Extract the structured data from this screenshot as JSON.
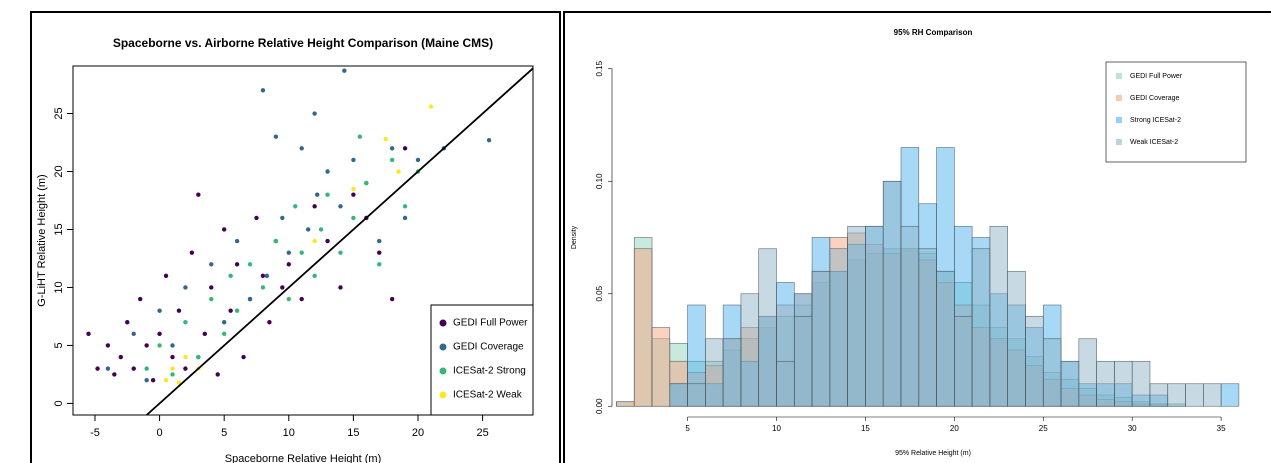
{
  "chart_data": [
    {
      "type": "scatter",
      "title": "Spaceborne vs. Airborne Relative Height Comparison (Maine CMS)",
      "x_label": "Spaceborne Relative Height (m)",
      "y_label": "G-LiHT Relative Height (m)",
      "xlim": [
        -6.7,
        28.9
      ],
      "ylim": [
        -1,
        29.1
      ],
      "xticks": [
        -5,
        0,
        5,
        10,
        15,
        20,
        25
      ],
      "yticks": [
        0,
        5,
        10,
        15,
        20,
        25
      ],
      "legend": "bottom-right",
      "series": [
        {
          "name": "GEDI Full Power",
          "color": "#440154",
          "x": [
            -5.5,
            -4.8,
            -4,
            -3.5,
            -3,
            -2.5,
            -2,
            -1.5,
            -1,
            -0.5,
            0,
            0.5,
            1,
            1.5,
            2,
            2.5,
            3,
            3.5,
            4,
            4.5,
            5,
            5.5,
            6,
            6.5,
            7,
            7.5,
            8,
            8.5,
            9,
            9.5,
            10,
            11,
            12,
            13,
            14,
            15,
            16,
            17,
            18,
            19
          ],
          "y": [
            6,
            3,
            5,
            2.5,
            4,
            7,
            3,
            9,
            5,
            2,
            6,
            11,
            4,
            8,
            3,
            13,
            18,
            6,
            10,
            2.5,
            15,
            8,
            12,
            4,
            9,
            16,
            11,
            7,
            14,
            10,
            12,
            9,
            17,
            14,
            10,
            18,
            16,
            13,
            9,
            22
          ]
        },
        {
          "name": "GEDI Coverage",
          "color": "#31688e",
          "x": [
            -4,
            -2,
            -1,
            0,
            1,
            2,
            3,
            4,
            5,
            6,
            7,
            8,
            8.3,
            9,
            9.5,
            10,
            11,
            11.5,
            12,
            12.2,
            13,
            14,
            14.3,
            15,
            16,
            17,
            18,
            19,
            20,
            22,
            25.5
          ],
          "y": [
            3,
            6,
            2,
            8,
            5,
            10,
            4,
            12,
            7,
            14,
            9,
            27,
            11,
            23,
            16,
            13,
            22,
            15,
            25,
            18,
            20,
            17,
            28.7,
            21,
            19,
            14,
            22,
            16,
            21,
            22,
            22.7
          ]
        },
        {
          "name": "ICESat-2 Strong",
          "color": "#35b779",
          "x": [
            -1,
            0,
            1,
            2,
            3,
            4,
            5,
            5.5,
            6,
            7,
            8,
            9,
            10,
            10.5,
            11,
            12,
            12.5,
            13,
            14,
            15,
            15.5,
            16,
            17,
            18,
            19,
            20
          ],
          "y": [
            3,
            5,
            2.5,
            7,
            4,
            9,
            6,
            11,
            8,
            12,
            10,
            14,
            9,
            17,
            13,
            11,
            15,
            18,
            13,
            16,
            23,
            19,
            12,
            21,
            17,
            20
          ]
        },
        {
          "name": "ICESat-2 Weak",
          "color": "#fde725",
          "x": [
            0.5,
            1,
            1.5,
            2,
            3,
            12,
            15,
            17.5,
            18.5,
            21
          ],
          "y": [
            2,
            3,
            1.8,
            4,
            3,
            14,
            18.5,
            22.8,
            20,
            25.6
          ]
        }
      ]
    },
    {
      "type": "histogram",
      "title": "95% RH Comparison",
      "x_label": "95% Relative Height (m)",
      "y_label": "Density",
      "xlim": [
        1.2,
        36.4
      ],
      "ylim": [
        -0.003,
        0.153
      ],
      "xticks": [
        5,
        10,
        15,
        20,
        25,
        30,
        35
      ],
      "yticks": [
        {
          "value": 0,
          "label": "0.00"
        },
        0.05,
        {
          "value": 0.1,
          "label": "0.10"
        },
        0.15
      ],
      "legend": "top-right",
      "bins": [
        1,
        2,
        3,
        4,
        5,
        6,
        7,
        8,
        9,
        10,
        11,
        12,
        13,
        14,
        15,
        16,
        17,
        18,
        19,
        20,
        21,
        22,
        23,
        24,
        25,
        26,
        27,
        28,
        29,
        30,
        31,
        32,
        33,
        34,
        35,
        36
      ],
      "series": [
        {
          "name": "GEDI Full Power",
          "color": "#8fd3be",
          "values": [
            0.002,
            0.075,
            0.03,
            0.028,
            0.02,
            0.02,
            0.025,
            0.03,
            0.035,
            0.04,
            0.045,
            0.055,
            0.06,
            0.065,
            0.068,
            0.07,
            0.07,
            0.068,
            0.06,
            0.055,
            0.045,
            0.035,
            0.03,
            0.022,
            0.015,
            0.012,
            0.008,
            0.005,
            0.004,
            0.002,
            0.001,
            0.001,
            0,
            0,
            0
          ]
        },
        {
          "name": "GEDI Coverage",
          "color": "#f4a582",
          "values": [
            0.002,
            0.07,
            0.035,
            0.02,
            0.015,
            0.018,
            0.03,
            0.035,
            0.04,
            0.045,
            0.05,
            0.06,
            0.075,
            0.077,
            0.072,
            0.068,
            0.07,
            0.065,
            0.055,
            0.045,
            0.035,
            0.03,
            0.025,
            0.018,
            0.012,
            0.008,
            0.005,
            0.003,
            0.002,
            0.001,
            0.001,
            0,
            0,
            0,
            0
          ]
        },
        {
          "name": "Strong ICESat-2",
          "color": "#4fb3f0",
          "values": [
            0,
            0,
            0,
            0.01,
            0.045,
            0.01,
            0.045,
            0.02,
            0.04,
            0.055,
            0.05,
            0.075,
            0.06,
            0.072,
            0.08,
            0.1,
            0.115,
            0.09,
            0.115,
            0.08,
            0.075,
            0.05,
            0.045,
            0.035,
            0.045,
            0.02,
            0.01,
            0.01,
            0.01,
            0.005,
            0.005,
            0,
            0,
            0,
            0.01
          ]
        },
        {
          "name": "Weak ICESat-2",
          "color": "#8fb4c8",
          "values": [
            0,
            0,
            0,
            0.01,
            0.01,
            0.03,
            0.03,
            0.05,
            0.07,
            0.02,
            0.04,
            0.06,
            0.07,
            0.08,
            0.08,
            0.1,
            0.08,
            0.07,
            0.06,
            0.04,
            0.07,
            0.08,
            0.06,
            0.04,
            0.03,
            0.02,
            0.03,
            0.02,
            0.02,
            0.02,
            0.01,
            0.01,
            0.01,
            0.01,
            0
          ]
        }
      ]
    }
  ]
}
